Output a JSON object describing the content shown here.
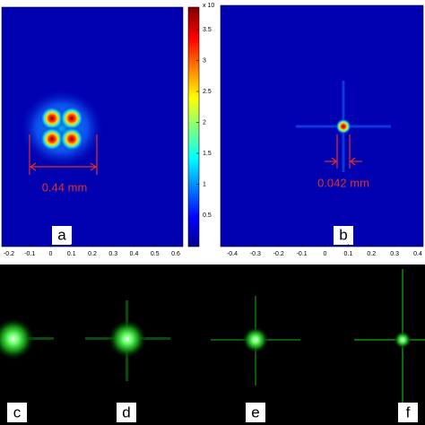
{
  "panels": {
    "a": {
      "label": "a",
      "dimension": "0.44 mm",
      "x_ticks": [
        "-0.2",
        "-0.1",
        "0",
        "0.1",
        "0.2",
        "0.3",
        "0.4",
        "0.5",
        "0.6"
      ]
    },
    "b": {
      "label": "b",
      "dimension": "0.042 mm",
      "x_ticks": [
        "-0.4",
        "-0.3",
        "-0.2",
        "-0.1",
        "0",
        "0.1",
        "0.2",
        "0.3",
        "0.4"
      ]
    },
    "c": {
      "label": "c"
    },
    "d": {
      "label": "d"
    },
    "e": {
      "label": "e"
    },
    "f": {
      "label": "f"
    }
  },
  "colorbar": {
    "exponent": "x 10",
    "ticks": [
      "3.5",
      "3",
      "2.5",
      "2",
      "1.5",
      "1",
      "0.5"
    ]
  }
}
